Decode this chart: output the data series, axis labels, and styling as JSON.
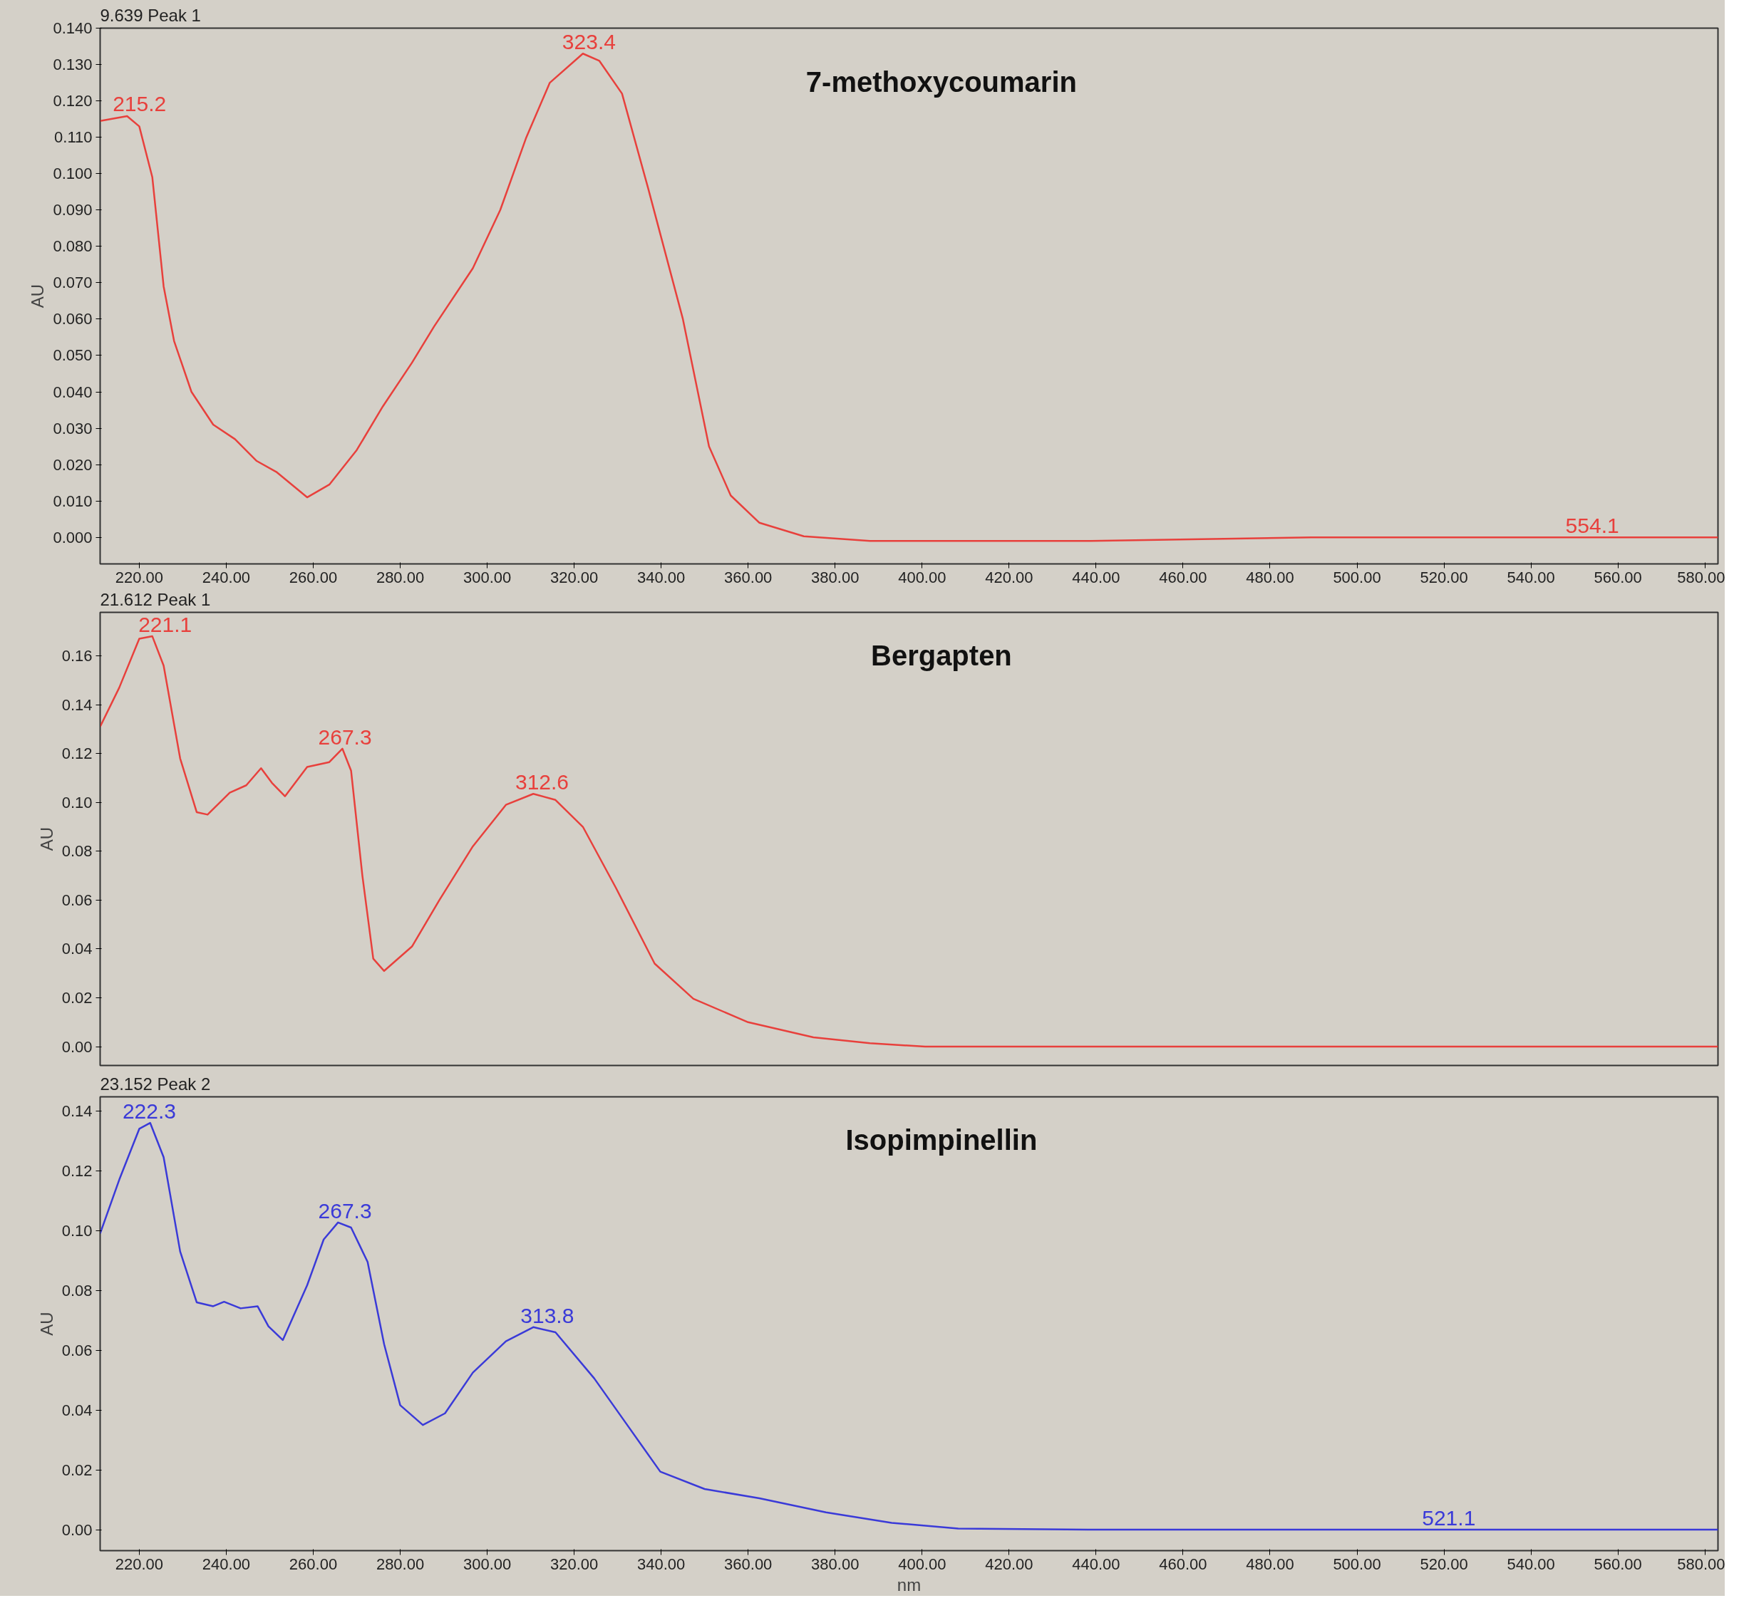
{
  "chart_data": [
    {
      "type": "line",
      "title": "9.639 Peak 1",
      "ylabel": "AU",
      "annotations": [
        "7-methoxycoumarin",
        {
          "text": "215.2",
          "x": 215.2,
          "y": 0.116
        },
        {
          "text": "323.4",
          "x": 323.4,
          "y": 0.133
        },
        {
          "text": "554.1",
          "x": 554.1,
          "y": 0.0
        }
      ],
      "xlim": [
        211,
        583
      ],
      "ylim": [
        -0.0073,
        0.14
      ],
      "xticks": [
        {
          "value": 220,
          "label": "220.00"
        },
        {
          "value": 240,
          "label": "240.00"
        },
        {
          "value": 260,
          "label": "260.00"
        },
        {
          "value": 280,
          "label": "280.00"
        },
        {
          "value": 300,
          "label": "300.00"
        },
        {
          "value": 320,
          "label": "320.00"
        },
        {
          "value": 340,
          "label": "340.00"
        },
        {
          "value": 360,
          "label": "360.00"
        },
        {
          "value": 380,
          "label": "380.00"
        },
        {
          "value": 400,
          "label": "400.00"
        },
        {
          "value": 420,
          "label": "420.00"
        },
        {
          "value": 440,
          "label": "440.00"
        },
        {
          "value": 460,
          "label": "460.00"
        },
        {
          "value": 480,
          "label": "480.00"
        },
        {
          "value": 500,
          "label": "500.00"
        },
        {
          "value": 520,
          "label": "520.00"
        },
        {
          "value": 540,
          "label": "540.00"
        },
        {
          "value": 560,
          "label": "560.00"
        },
        {
          "value": 580,
          "label": "580.00"
        }
      ],
      "yticks": [
        {
          "value": 0,
          "label": "0.000"
        },
        {
          "value": 0.01,
          "label": "0.010"
        },
        {
          "value": 0.02,
          "label": "0.020"
        },
        {
          "value": 0.03,
          "label": "0.030"
        },
        {
          "value": 0.04,
          "label": "0.040"
        },
        {
          "value": 0.05,
          "label": "0.050"
        },
        {
          "value": 0.06,
          "label": "0.060"
        },
        {
          "value": 0.07,
          "label": "0.070"
        },
        {
          "value": 0.08,
          "label": "0.080"
        },
        {
          "value": 0.09,
          "label": "0.090"
        },
        {
          "value": 0.1,
          "label": "0.100"
        },
        {
          "value": 0.11,
          "label": "0.110"
        },
        {
          "value": 0.12,
          "label": "0.120"
        },
        {
          "value": 0.13,
          "label": "0.130"
        },
        {
          "value": 0.14,
          "label": "0.140"
        }
      ],
      "x": [
        211,
        217.2,
        220,
        223,
        225.6,
        228,
        232,
        237,
        242,
        247,
        251.5,
        258.6,
        263.7,
        270,
        276,
        282.7,
        287.8,
        296.7,
        303,
        309,
        314.4,
        322,
        325.8,
        331,
        337,
        345,
        351,
        356,
        362.6,
        372.8,
        388,
        438.8,
        489.5,
        583
      ],
      "series": [
        {
          "color": "#e8403c",
          "values": [
            0.1145,
            0.1158,
            0.113,
            0.099,
            0.069,
            0.054,
            0.04,
            0.031,
            0.027,
            0.021,
            0.018,
            0.011,
            0.0145,
            0.024,
            0.036,
            0.048,
            0.058,
            0.074,
            0.09,
            0.11,
            0.125,
            0.133,
            0.131,
            0.122,
            0.096,
            0.06,
            0.025,
            0.0115,
            0.004,
            0.0003,
            -0.001,
            -0.001,
            0.0,
            0.0
          ]
        }
      ]
    },
    {
      "type": "line",
      "title": "21.612 Peak 1",
      "ylabel": "AU",
      "tick_labels": "y",
      "annotations": [
        "Bergapten",
        {
          "text": "221.1",
          "x": 221.1,
          "y": 0.168
        },
        {
          "text": "267.3",
          "x": 267.3,
          "y": 0.122
        },
        {
          "text": "312.6",
          "x": 312.6,
          "y": 0.1035
        }
      ],
      "xlim": [
        211,
        583
      ],
      "ylim": [
        -0.0077,
        0.1778
      ],
      "yticks": [
        {
          "value": 0,
          "label": "0.00"
        },
        {
          "value": 0.02,
          "label": "0.02"
        },
        {
          "value": 0.04,
          "label": "0.04"
        },
        {
          "value": 0.06,
          "label": "0.06"
        },
        {
          "value": 0.08,
          "label": "0.08"
        },
        {
          "value": 0.1,
          "label": "0.10"
        },
        {
          "value": 0.12,
          "label": "0.12"
        },
        {
          "value": 0.14,
          "label": "0.14"
        },
        {
          "value": 0.16,
          "label": "0.16"
        }
      ],
      "x": [
        211,
        215.4,
        220,
        223,
        225.6,
        229.4,
        233.2,
        235.7,
        240.8,
        244.6,
        248,
        250.5,
        253.5,
        258.6,
        263.7,
        266.7,
        268.7,
        271.3,
        273.8,
        276.3,
        282.7,
        289,
        296.7,
        304.3,
        310.6,
        315.7,
        322,
        329.6,
        338.5,
        347.4,
        360,
        375,
        388,
        400.7,
        583
      ],
      "series": [
        {
          "color": "#e8403c",
          "values": [
            0.131,
            0.147,
            0.167,
            0.168,
            0.156,
            0.118,
            0.096,
            0.095,
            0.104,
            0.107,
            0.114,
            0.108,
            0.1025,
            0.1145,
            0.1165,
            0.122,
            0.113,
            0.07,
            0.036,
            0.031,
            0.041,
            0.06,
            0.082,
            0.099,
            0.1035,
            0.101,
            0.09,
            0.065,
            0.034,
            0.0196,
            0.01,
            0.0038,
            0.0014,
            0.0,
            0.0
          ]
        }
      ]
    },
    {
      "type": "line",
      "title": "23.152 Peak 2",
      "xlabel": "nm",
      "ylabel": "AU",
      "annotations": [
        "Isopimpinellin",
        {
          "text": "222.3",
          "x": 222.3,
          "y": 0.136
        },
        {
          "text": "267.3",
          "x": 267.3,
          "y": 0.1027
        },
        {
          "text": "313.8",
          "x": 313.8,
          "y": 0.0677
        },
        {
          "text": "521.1",
          "x": 521.1,
          "y": 0.0
        }
      ],
      "xlim": [
        211,
        583
      ],
      "ylim": [
        -0.007,
        0.1447
      ],
      "xticks": [
        {
          "value": 220,
          "label": "220.00"
        },
        {
          "value": 240,
          "label": "240.00"
        },
        {
          "value": 260,
          "label": "260.00"
        },
        {
          "value": 280,
          "label": "280.00"
        },
        {
          "value": 300,
          "label": "300.00"
        },
        {
          "value": 320,
          "label": "320.00"
        },
        {
          "value": 340,
          "label": "340.00"
        },
        {
          "value": 360,
          "label": "360.00"
        },
        {
          "value": 380,
          "label": "380.00"
        },
        {
          "value": 400,
          "label": "400.00"
        },
        {
          "value": 420,
          "label": "420.00"
        },
        {
          "value": 440,
          "label": "440.00"
        },
        {
          "value": 460,
          "label": "460.00"
        },
        {
          "value": 480,
          "label": "480.00"
        },
        {
          "value": 500,
          "label": "500.00"
        },
        {
          "value": 520,
          "label": "520.00"
        },
        {
          "value": 540,
          "label": "540.00"
        },
        {
          "value": 560,
          "label": "560.00"
        },
        {
          "value": 580,
          "label": "580.00"
        }
      ],
      "yticks": [
        {
          "value": 0,
          "label": "0.00"
        },
        {
          "value": 0.02,
          "label": "0.02"
        },
        {
          "value": 0.04,
          "label": "0.04"
        },
        {
          "value": 0.06,
          "label": "0.06"
        },
        {
          "value": 0.08,
          "label": "0.08"
        },
        {
          "value": 0.1,
          "label": "0.10"
        },
        {
          "value": 0.12,
          "label": "0.12"
        },
        {
          "value": 0.14,
          "label": "0.14"
        }
      ],
      "x": [
        211,
        215.4,
        220,
        222.5,
        225.6,
        229.4,
        233.2,
        237,
        239.5,
        243.3,
        247.2,
        249.7,
        253,
        258.6,
        262.4,
        265.7,
        268.7,
        272.5,
        276.3,
        280,
        285.2,
        290.3,
        296.7,
        304.3,
        310.6,
        315.7,
        324.6,
        332.2,
        339.8,
        350,
        362.6,
        377.9,
        393,
        408.3,
        438.8,
        583
      ],
      "series": [
        {
          "color": "#3a3ad8",
          "values": [
            0.099,
            0.117,
            0.134,
            0.136,
            0.1245,
            0.093,
            0.076,
            0.0747,
            0.0762,
            0.074,
            0.0747,
            0.068,
            0.0634,
            0.0817,
            0.097,
            0.1027,
            0.101,
            0.0895,
            0.062,
            0.0416,
            0.035,
            0.0389,
            0.0525,
            0.063,
            0.0677,
            0.066,
            0.0506,
            0.035,
            0.0194,
            0.0136,
            0.0105,
            0.0058,
            0.0023,
            0.0004,
            0.0,
            0.0
          ]
        }
      ]
    }
  ]
}
